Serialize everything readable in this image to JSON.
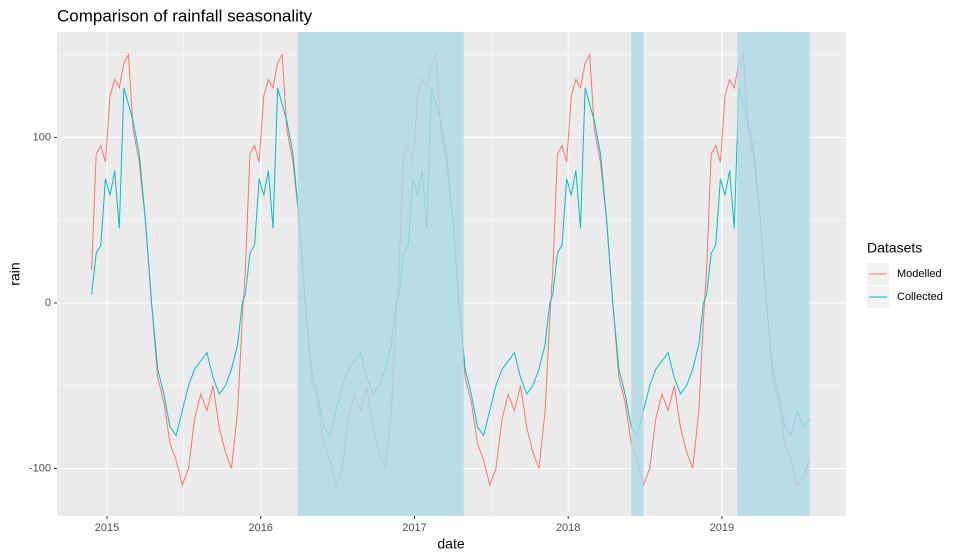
{
  "chart_data": {
    "type": "line",
    "title": "Comparison of rainfall seasonality",
    "x_label": "date",
    "y_label": "rain",
    "legend_title": "Datasets",
    "legend_position": "right",
    "x": [
      2014.9,
      2014.93,
      2014.96,
      2014.99,
      2015.02,
      2015.05,
      2015.08,
      2015.11,
      2015.14,
      2015.17,
      2015.21,
      2015.25,
      2015.29,
      2015.33,
      2015.37,
      2015.41,
      2015.45,
      2015.49,
      2015.53,
      2015.57,
      2015.61,
      2015.65,
      2015.69,
      2015.73,
      2015.77,
      2015.81,
      2015.85,
      2015.88,
      2015.9,
      2015.93,
      2015.96,
      2015.99,
      2016.02,
      2016.05,
      2016.08,
      2016.11,
      2016.14,
      2016.17,
      2016.21,
      2016.25,
      2016.29,
      2016.33,
      2016.37,
      2016.41,
      2016.45,
      2016.49,
      2016.53,
      2016.57,
      2016.61,
      2016.65,
      2016.69,
      2016.73,
      2016.77,
      2016.81,
      2016.85,
      2016.88,
      2016.9,
      2016.93,
      2016.96,
      2016.99,
      2017.02,
      2017.05,
      2017.08,
      2017.11,
      2017.14,
      2017.17,
      2017.21,
      2017.25,
      2017.29,
      2017.33,
      2017.37,
      2017.41,
      2017.45,
      2017.49,
      2017.53,
      2017.57,
      2017.61,
      2017.65,
      2017.69,
      2017.73,
      2017.77,
      2017.81,
      2017.85,
      2017.88,
      2017.9,
      2017.93,
      2017.96,
      2017.99,
      2018.02,
      2018.05,
      2018.08,
      2018.11,
      2018.14,
      2018.17,
      2018.21,
      2018.25,
      2018.29,
      2018.33,
      2018.37,
      2018.41,
      2018.45,
      2018.49,
      2018.53,
      2018.57,
      2018.61,
      2018.65,
      2018.69,
      2018.73,
      2018.77,
      2018.81,
      2018.85,
      2018.88,
      2018.9,
      2018.93,
      2018.96,
      2018.99,
      2019.02,
      2019.05,
      2019.08,
      2019.11,
      2019.14,
      2019.17,
      2019.21,
      2019.25,
      2019.29,
      2019.33,
      2019.37,
      2019.41,
      2019.45,
      2019.49,
      2019.53,
      2019.57
    ],
    "series": [
      {
        "name": "Modelled",
        "color": "#F8766D",
        "values": [
          20,
          90,
          95,
          85,
          125,
          135,
          130,
          145,
          150,
          105,
          85,
          50,
          0,
          -45,
          -60,
          -85,
          -95,
          -110,
          -100,
          -70,
          -55,
          -65,
          -50,
          -75,
          -90,
          -100,
          -65,
          -10,
          20,
          90,
          95,
          85,
          125,
          135,
          130,
          145,
          150,
          105,
          85,
          50,
          0,
          -45,
          -60,
          -85,
          -95,
          -110,
          -100,
          -70,
          -55,
          -65,
          -50,
          -75,
          -90,
          -100,
          -65,
          -10,
          20,
          90,
          95,
          85,
          125,
          135,
          130,
          145,
          150,
          105,
          85,
          50,
          0,
          -45,
          -60,
          -85,
          -95,
          -110,
          -100,
          -70,
          -55,
          -65,
          -50,
          -75,
          -90,
          -100,
          -65,
          -10,
          20,
          90,
          95,
          85,
          125,
          135,
          130,
          145,
          150,
          105,
          85,
          50,
          0,
          -45,
          -60,
          -85,
          -95,
          -110,
          -100,
          -70,
          -55,
          -65,
          -50,
          -75,
          -90,
          -100,
          -65,
          -10,
          20,
          90,
          95,
          85,
          125,
          135,
          130,
          145,
          150,
          105,
          85,
          50,
          0,
          -45,
          -60,
          -85,
          -95,
          -110,
          -105,
          -95
        ]
      },
      {
        "name": "Collected",
        "color": "#00BFC4",
        "values": [
          5,
          30,
          35,
          75,
          65,
          80,
          45,
          130,
          120,
          110,
          90,
          50,
          0,
          -40,
          -55,
          -75,
          -80,
          -65,
          -50,
          -40,
          -35,
          -30,
          -45,
          -55,
          -50,
          -40,
          -25,
          0,
          5,
          30,
          35,
          75,
          65,
          80,
          45,
          130,
          120,
          110,
          90,
          50,
          0,
          -40,
          -55,
          -75,
          -80,
          -65,
          -50,
          -40,
          -35,
          -30,
          -45,
          -55,
          -50,
          -40,
          -25,
          0,
          5,
          30,
          35,
          75,
          65,
          80,
          45,
          130,
          120,
          110,
          90,
          50,
          0,
          -40,
          -55,
          -75,
          -80,
          -65,
          -50,
          -40,
          -35,
          -30,
          -45,
          -55,
          -50,
          -40,
          -25,
          0,
          5,
          30,
          35,
          75,
          65,
          80,
          45,
          130,
          120,
          110,
          90,
          50,
          0,
          -40,
          -55,
          -75,
          -80,
          -65,
          -50,
          -40,
          -35,
          -30,
          -45,
          -55,
          -50,
          -40,
          -25,
          0,
          5,
          30,
          35,
          75,
          65,
          80,
          45,
          130,
          120,
          110,
          90,
          50,
          0,
          -40,
          -55,
          -75,
          -80,
          -65,
          -75,
          -70
        ]
      }
    ],
    "shaded_regions": [
      {
        "start": 2016.24,
        "end": 2017.32
      },
      {
        "start": 2018.41,
        "end": 2018.49
      },
      {
        "start": 2019.1,
        "end": 2019.57
      }
    ],
    "shade_color": "#add8e6",
    "xlim": [
      2014.675,
      2019.807
    ],
    "ylim": [
      -128.7,
      163.7
    ],
    "xticks": [
      2015,
      2016,
      2017,
      2018,
      2019
    ],
    "yticks": [
      -100,
      0,
      100
    ],
    "minor_xticks": [
      2015.5,
      2016.5,
      2017.5,
      2018.5,
      2019.5
    ],
    "minor_yticks": [
      -50,
      50,
      150
    ],
    "grid": true
  }
}
